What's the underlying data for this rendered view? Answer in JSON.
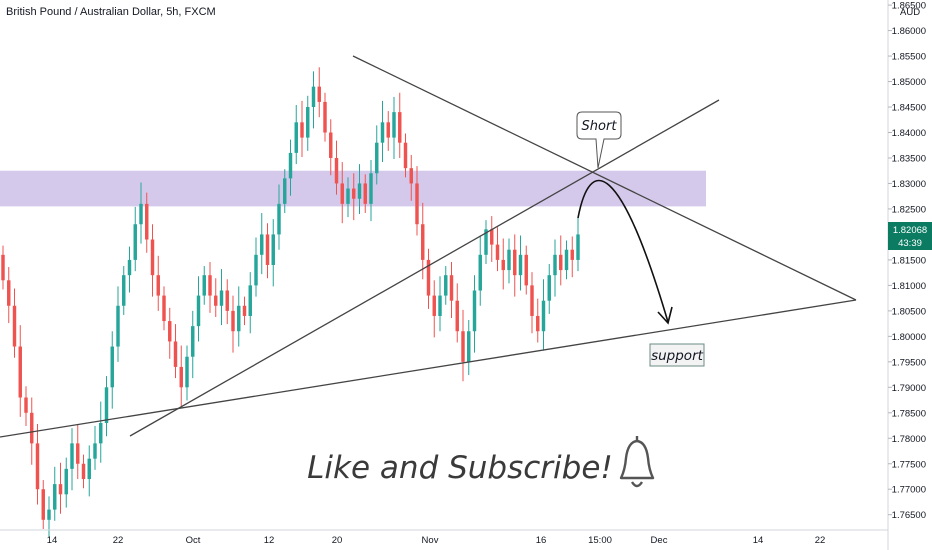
{
  "header": {
    "title": "British Pound / Australian Dollar, 5h, FXCM"
  },
  "colors": {
    "up": "#26a69a",
    "down": "#ef5350",
    "zone": "#b39ddb",
    "line": "#444444",
    "price_tag": "#26a69a",
    "last_price_bg": "#0b7b61"
  },
  "annotations": {
    "short_label": "Short",
    "support_label": "support",
    "cta_text": "Like and Subscribe!",
    "bell_icon": "bell-icon"
  },
  "price_tag": {
    "value": "1.82068",
    "countdown": "43:39"
  },
  "chart_data": {
    "type": "candlestick",
    "title": "British Pound / Australian Dollar, 5h, FXCM",
    "currency_label": "AUD",
    "ylim": [
      1.762,
      1.866
    ],
    "y_ticks": [
      "1.86500",
      "1.86000",
      "1.85500",
      "1.85000",
      "1.84500",
      "1.84000",
      "1.83500",
      "1.83000",
      "1.82500",
      "1.82000",
      "1.81500",
      "1.81000",
      "1.80500",
      "1.80000",
      "1.79500",
      "1.79000",
      "1.78500",
      "1.78000",
      "1.77500",
      "1.77000",
      "1.76500"
    ],
    "x_ticks": [
      "14",
      "22",
      "Oct",
      "12",
      "20",
      "Nov",
      "16",
      "15:00",
      "Dec",
      "14",
      "22"
    ],
    "last_price": 1.82068,
    "resistance_zone": [
      1.8255,
      1.8325
    ],
    "series": [
      {
        "name": "price",
        "path": [
          [
            1.816,
            1.811
          ],
          [
            1.811,
            1.806
          ],
          [
            1.806,
            1.798
          ],
          [
            1.798,
            1.788
          ],
          [
            1.788,
            1.785
          ],
          [
            1.785,
            1.779
          ],
          [
            1.779,
            1.77
          ],
          [
            1.77,
            1.764
          ],
          [
            1.764,
            1.766
          ],
          [
            1.766,
            1.771
          ],
          [
            1.771,
            1.769
          ],
          [
            1.769,
            1.774
          ],
          [
            1.774,
            1.779
          ],
          [
            1.779,
            1.775
          ],
          [
            1.775,
            1.772
          ],
          [
            1.772,
            1.776
          ],
          [
            1.776,
            1.779
          ],
          [
            1.779,
            1.783
          ],
          [
            1.783,
            1.79
          ],
          [
            1.79,
            1.798
          ],
          [
            1.798,
            1.806
          ],
          [
            1.806,
            1.812
          ],
          [
            1.812,
            1.815
          ],
          [
            1.815,
            1.822
          ],
          [
            1.822,
            1.826
          ],
          [
            1.826,
            1.819
          ],
          [
            1.819,
            1.812
          ],
          [
            1.812,
            1.808
          ],
          [
            1.808,
            1.803
          ],
          [
            1.803,
            1.799
          ],
          [
            1.799,
            1.794
          ],
          [
            1.794,
            1.79
          ],
          [
            1.79,
            1.796
          ],
          [
            1.796,
            1.802
          ],
          [
            1.802,
            1.808
          ],
          [
            1.808,
            1.812
          ],
          [
            1.812,
            1.808
          ],
          [
            1.808,
            1.806
          ],
          [
            1.806,
            1.809
          ],
          [
            1.809,
            1.805
          ],
          [
            1.805,
            1.801
          ],
          [
            1.801,
            1.806
          ],
          [
            1.806,
            1.804
          ],
          [
            1.804,
            1.81
          ],
          [
            1.81,
            1.816
          ],
          [
            1.816,
            1.82
          ],
          [
            1.82,
            1.814
          ],
          [
            1.814,
            1.82
          ],
          [
            1.82,
            1.826
          ],
          [
            1.826,
            1.831
          ],
          [
            1.831,
            1.836
          ],
          [
            1.836,
            1.842
          ],
          [
            1.842,
            1.839
          ],
          [
            1.839,
            1.845
          ],
          [
            1.845,
            1.849
          ],
          [
            1.849,
            1.846
          ],
          [
            1.846,
            1.84
          ],
          [
            1.84,
            1.835
          ],
          [
            1.835,
            1.83
          ],
          [
            1.83,
            1.826
          ],
          [
            1.826,
            1.829
          ],
          [
            1.829,
            1.827
          ],
          [
            1.827,
            1.83
          ],
          [
            1.83,
            1.826
          ],
          [
            1.826,
            1.832
          ],
          [
            1.832,
            1.838
          ],
          [
            1.838,
            1.842
          ],
          [
            1.842,
            1.839
          ],
          [
            1.839,
            1.844
          ],
          [
            1.844,
            1.838
          ],
          [
            1.838,
            1.833
          ],
          [
            1.833,
            1.83
          ],
          [
            1.83,
            1.822
          ],
          [
            1.822,
            1.815
          ],
          [
            1.815,
            1.808
          ],
          [
            1.808,
            1.804
          ],
          [
            1.804,
            1.808
          ],
          [
            1.808,
            1.812
          ],
          [
            1.812,
            1.807
          ],
          [
            1.807,
            1.801
          ],
          [
            1.801,
            1.795
          ],
          [
            1.795,
            1.801
          ],
          [
            1.801,
            1.809
          ],
          [
            1.809,
            1.816
          ],
          [
            1.816,
            1.821
          ],
          [
            1.821,
            1.818
          ],
          [
            1.818,
            1.815
          ],
          [
            1.815,
            1.813
          ],
          [
            1.813,
            1.817
          ],
          [
            1.817,
            1.812
          ],
          [
            1.812,
            1.816
          ],
          [
            1.816,
            1.81
          ],
          [
            1.81,
            1.804
          ],
          [
            1.804,
            1.801
          ],
          [
            1.801,
            1.807
          ],
          [
            1.807,
            1.812
          ],
          [
            1.812,
            1.816
          ],
          [
            1.816,
            1.813
          ],
          [
            1.813,
            1.817
          ],
          [
            1.817,
            1.815
          ],
          [
            1.815,
            1.82
          ]
        ]
      }
    ]
  }
}
